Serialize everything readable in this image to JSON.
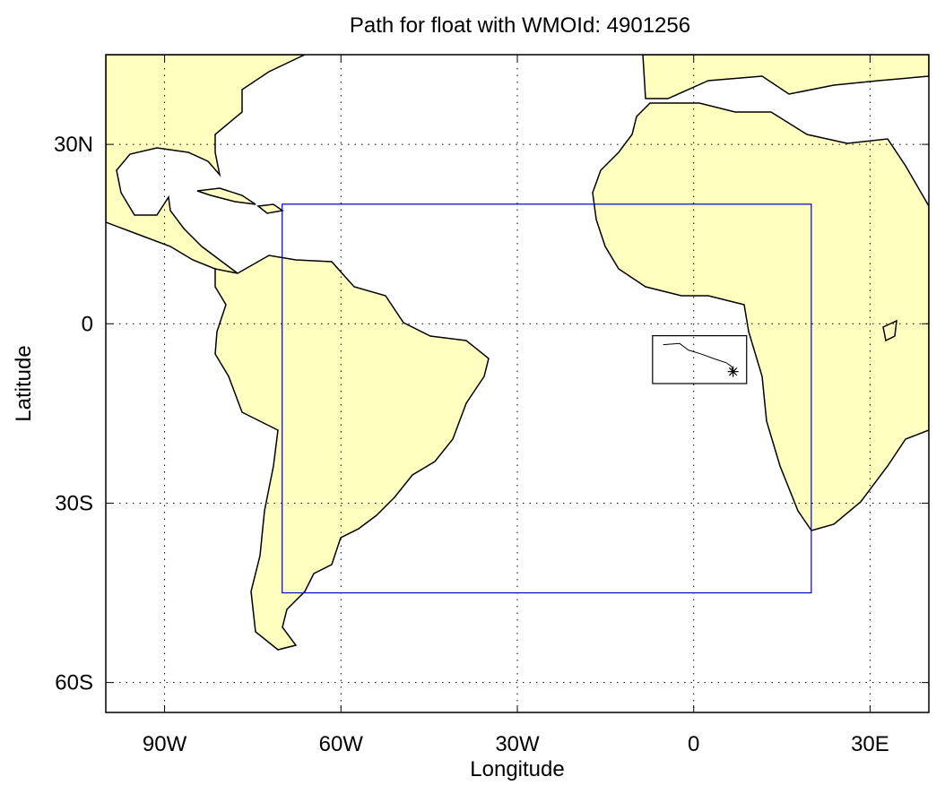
{
  "chart_data": {
    "type": "map",
    "title": "Path for float with WMOId: 4901256",
    "x_label": "Longitude",
    "y_label": "Latitude",
    "xlim": [
      -100,
      40
    ],
    "ylim": [
      -65,
      45
    ],
    "xticks": [
      {
        "value": -90,
        "label": "90W"
      },
      {
        "value": -60,
        "label": "60W"
      },
      {
        "value": -30,
        "label": "30W"
      },
      0,
      {
        "value": 30,
        "label": "30E"
      }
    ],
    "yticks": [
      {
        "value": -60,
        "label": "60S"
      },
      {
        "value": -30,
        "label": "30S"
      },
      0,
      {
        "value": 30,
        "label": "30N"
      }
    ],
    "grid": true,
    "regions": [
      {
        "color": "#0000cc",
        "lon": [
          -70,
          20
        ],
        "lat": [
          -45,
          20
        ]
      },
      {
        "color": "#000000",
        "lon": [
          -7,
          9
        ],
        "lat": [
          -10,
          -2
        ]
      }
    ],
    "series": [
      {
        "color": "#000000",
        "x": [
          -5.2,
          -2.4,
          -0.9,
          1.4,
          3.6,
          5.5,
          6.4,
          6.7
        ],
        "y": [
          -3.5,
          -3.3,
          -4.4,
          -5.1,
          -5.9,
          -6.5,
          -7.1,
          -8.0
        ]
      }
    ]
  }
}
